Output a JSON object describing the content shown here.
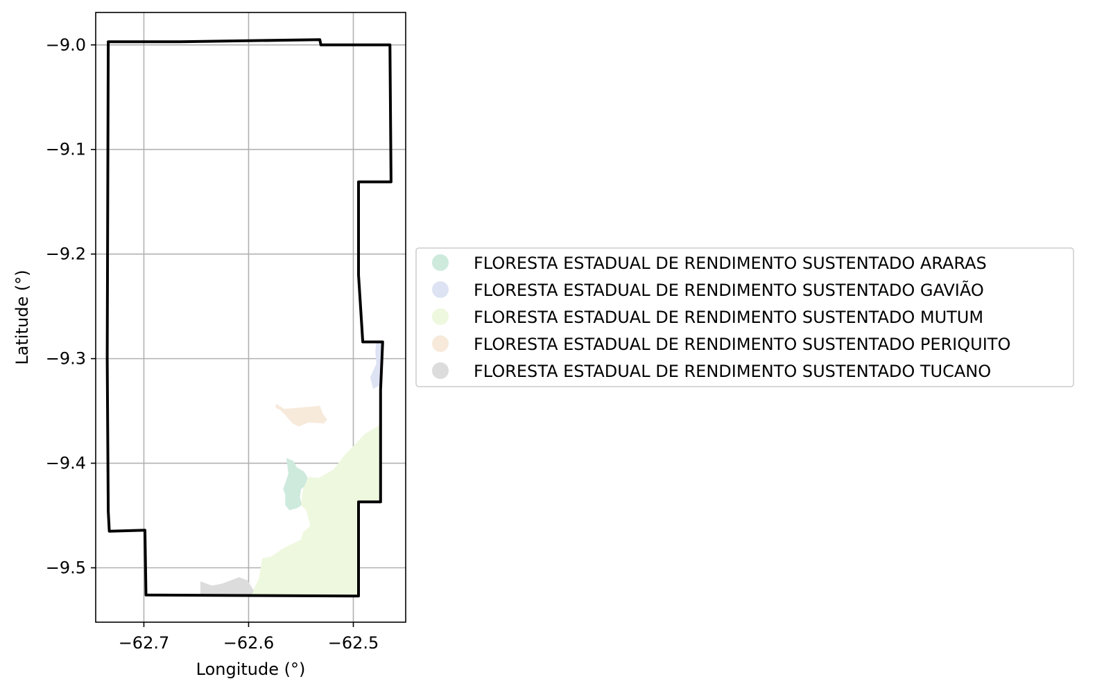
{
  "chart_data": {
    "type": "map",
    "xlabel": "Longitude (°)",
    "ylabel": "Latitude (°)",
    "xlim": [
      -62.746,
      -62.45
    ],
    "ylim": [
      -9.552,
      -8.969
    ],
    "xticks": [
      -62.7,
      -62.6,
      -62.5
    ],
    "xtick_labels": [
      "−62.7",
      "−62.6",
      "−62.5"
    ],
    "yticks": [
      -9.0,
      -9.1,
      -9.2,
      -9.3,
      -9.4,
      -9.5
    ],
    "ytick_labels": [
      "−9.0",
      "−9.1",
      "−9.2",
      "−9.3",
      "−9.4",
      "−9.5"
    ],
    "grid": true,
    "legend_position": "right",
    "boundary": {
      "color": "#000000",
      "coords": [
        [
          -62.734,
          -8.997
        ],
        [
          -62.665,
          -8.997
        ],
        [
          -62.532,
          -8.995
        ],
        [
          -62.531,
          -9.0
        ],
        [
          -62.465,
          -9.0
        ],
        [
          -62.464,
          -9.131
        ],
        [
          -62.495,
          -9.131
        ],
        [
          -62.495,
          -9.22
        ],
        [
          -62.492,
          -9.268
        ],
        [
          -62.491,
          -9.284
        ],
        [
          -62.472,
          -9.284
        ],
        [
          -62.474,
          -9.33
        ],
        [
          -62.474,
          -9.437
        ],
        [
          -62.495,
          -9.437
        ],
        [
          -62.495,
          -9.527
        ],
        [
          -62.698,
          -9.526
        ],
        [
          -62.699,
          -9.464
        ],
        [
          -62.733,
          -9.465
        ],
        [
          -62.734,
          -9.446
        ],
        [
          -62.735,
          -9.3
        ],
        [
          -62.734,
          -9.0
        ]
      ]
    },
    "areas": [
      {
        "name": "FLORESTA ESTADUAL DE RENDIMENTO SUSTENTADO ARARAS",
        "color": "#cdeadd",
        "coords": [
          [
            -62.564,
            -9.395
          ],
          [
            -62.557,
            -9.398
          ],
          [
            -62.554,
            -9.404
          ],
          [
            -62.547,
            -9.408
          ],
          [
            -62.544,
            -9.413
          ],
          [
            -62.544,
            -9.42
          ],
          [
            -62.55,
            -9.425
          ],
          [
            -62.551,
            -9.433
          ],
          [
            -62.549,
            -9.44
          ],
          [
            -62.554,
            -9.443
          ],
          [
            -62.561,
            -9.445
          ],
          [
            -62.565,
            -9.44
          ],
          [
            -62.565,
            -9.43
          ],
          [
            -62.567,
            -9.425
          ],
          [
            -62.562,
            -9.41
          ],
          [
            -62.563,
            -9.402
          ]
        ]
      },
      {
        "name": "FLORESTA ESTADUAL DE RENDIMENTO SUSTENTADO GAVIÃO",
        "color": "#dde3f3",
        "coords": [
          [
            -62.478,
            -9.284
          ],
          [
            -62.472,
            -9.284
          ],
          [
            -62.474,
            -9.325
          ],
          [
            -62.481,
            -9.329
          ],
          [
            -62.484,
            -9.318
          ],
          [
            -62.478,
            -9.305
          ],
          [
            -62.479,
            -9.293
          ]
        ]
      },
      {
        "name": "FLORESTA ESTADUAL DE RENDIMENTO SUSTENTADO MUTUM",
        "color": "#eef8df",
        "coords": [
          [
            -62.474,
            -9.363
          ],
          [
            -62.474,
            -9.437
          ],
          [
            -62.495,
            -9.437
          ],
          [
            -62.495,
            -9.527
          ],
          [
            -62.598,
            -9.526
          ],
          [
            -62.59,
            -9.51
          ],
          [
            -62.587,
            -9.491
          ],
          [
            -62.578,
            -9.489
          ],
          [
            -62.568,
            -9.482
          ],
          [
            -62.55,
            -9.473
          ],
          [
            -62.548,
            -9.466
          ],
          [
            -62.541,
            -9.46
          ],
          [
            -62.545,
            -9.445
          ],
          [
            -62.55,
            -9.44
          ],
          [
            -62.548,
            -9.425
          ],
          [
            -62.543,
            -9.413
          ],
          [
            -62.533,
            -9.414
          ],
          [
            -62.519,
            -9.406
          ],
          [
            -62.508,
            -9.392
          ],
          [
            -62.489,
            -9.372
          ]
        ]
      },
      {
        "name": "FLORESTA ESTADUAL DE RENDIMENTO SUSTENTADO PERIQUITO",
        "color": "#f7eadb",
        "coords": [
          [
            -62.574,
            -9.343
          ],
          [
            -62.566,
            -9.348
          ],
          [
            -62.554,
            -9.347
          ],
          [
            -62.541,
            -9.346
          ],
          [
            -62.532,
            -9.345
          ],
          [
            -62.529,
            -9.353
          ],
          [
            -62.525,
            -9.358
          ],
          [
            -62.528,
            -9.362
          ],
          [
            -62.543,
            -9.361
          ],
          [
            -62.552,
            -9.365
          ],
          [
            -62.558,
            -9.362
          ],
          [
            -62.565,
            -9.354
          ],
          [
            -62.57,
            -9.349
          ],
          [
            -62.574,
            -9.347
          ]
        ]
      },
      {
        "name": "FLORESTA ESTADUAL DE RENDIMENTO SUSTENTADO TUCANO",
        "color": "#dcdcdc",
        "coords": [
          [
            -62.646,
            -9.513
          ],
          [
            -62.635,
            -9.517
          ],
          [
            -62.625,
            -9.515
          ],
          [
            -62.617,
            -9.512
          ],
          [
            -62.609,
            -9.509
          ],
          [
            -62.601,
            -9.512
          ],
          [
            -62.595,
            -9.522
          ],
          [
            -62.598,
            -9.527
          ],
          [
            -62.646,
            -9.527
          ]
        ]
      }
    ]
  }
}
